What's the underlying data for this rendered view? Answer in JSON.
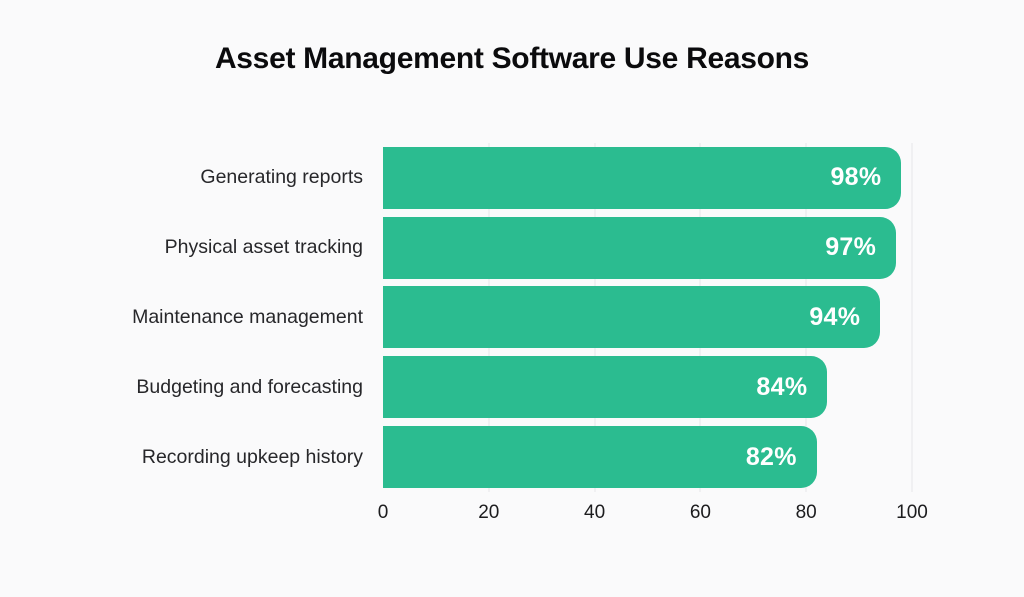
{
  "chart_data": {
    "type": "bar",
    "orientation": "horizontal",
    "title": "Asset Management Software Use Reasons",
    "categories": [
      "Generating reports",
      "Physical asset tracking",
      "Maintenance management",
      "Budgeting and forecasting",
      "Recording upkeep history"
    ],
    "values": [
      98,
      97,
      94,
      84,
      82
    ],
    "value_labels": [
      "98%",
      "97%",
      "94%",
      "84%",
      "82%"
    ],
    "x_ticks": [
      0,
      20,
      40,
      60,
      80,
      100
    ],
    "xlim": [
      0,
      100
    ],
    "xlabel": "",
    "ylabel": "",
    "grid": "vertical-gridlines-at-ticks",
    "legend": "none",
    "colors": {
      "bar": "#2bbc90",
      "background": "#fafafb",
      "grid": "#e6e6ea",
      "title": "#0b0b0d",
      "category_label": "#27272a",
      "tick_label": "#1c1c1e",
      "value_label": "#ffffff"
    }
  }
}
